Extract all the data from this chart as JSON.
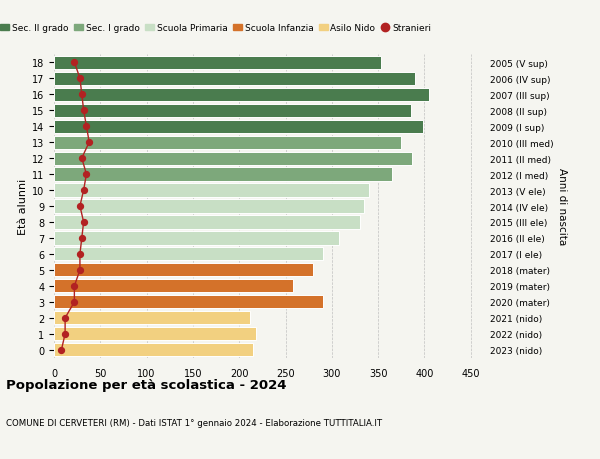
{
  "ages": [
    0,
    1,
    2,
    3,
    4,
    5,
    6,
    7,
    8,
    9,
    10,
    11,
    12,
    13,
    14,
    15,
    16,
    17,
    18
  ],
  "bar_values": [
    215,
    218,
    212,
    290,
    258,
    280,
    290,
    308,
    330,
    335,
    340,
    365,
    387,
    375,
    398,
    385,
    405,
    390,
    353
  ],
  "stranieri": [
    8,
    12,
    12,
    22,
    22,
    28,
    28,
    30,
    32,
    28,
    32,
    35,
    30,
    38,
    35,
    32,
    30,
    28,
    22
  ],
  "right_labels": [
    "2023 (nido)",
    "2022 (nido)",
    "2021 (nido)",
    "2020 (mater)",
    "2019 (mater)",
    "2018 (mater)",
    "2017 (I ele)",
    "2016 (II ele)",
    "2015 (III ele)",
    "2014 (IV ele)",
    "2013 (V ele)",
    "2012 (I med)",
    "2011 (II med)",
    "2010 (III med)",
    "2009 (I sup)",
    "2008 (II sup)",
    "2007 (III sup)",
    "2006 (IV sup)",
    "2005 (V sup)"
  ],
  "colors": {
    "sec2": "#4a7c4e",
    "sec1": "#7da87b",
    "primaria": "#c8dfc5",
    "infanzia": "#d4722a",
    "nido": "#f2d080",
    "stranieri": "#b22222",
    "bg": "#f5f5f0"
  },
  "bar_colors": [
    "#f2d080",
    "#f2d080",
    "#f2d080",
    "#d4722a",
    "#d4722a",
    "#d4722a",
    "#c8dfc5",
    "#c8dfc5",
    "#c8dfc5",
    "#c8dfc5",
    "#c8dfc5",
    "#7da87b",
    "#7da87b",
    "#7da87b",
    "#4a7c4e",
    "#4a7c4e",
    "#4a7c4e",
    "#4a7c4e",
    "#4a7c4e"
  ],
  "legend_labels": [
    "Sec. II grado",
    "Sec. I grado",
    "Scuola Primaria",
    "Scuola Infanzia",
    "Asilo Nido",
    "Stranieri"
  ],
  "legend_colors": [
    "#4a7c4e",
    "#7da87b",
    "#c8dfc5",
    "#d4722a",
    "#f2d080",
    "#b22222"
  ],
  "xlabel_vals": [
    0,
    50,
    100,
    150,
    200,
    250,
    300,
    350,
    400,
    450
  ],
  "xlim": [
    0,
    460
  ],
  "title": "Popolazione per età scolastica - 2024",
  "subtitle": "COMUNE DI CERVETERI (RM) - Dati ISTAT 1° gennaio 2024 - Elaborazione TUTTITALIA.IT",
  "ylabel": "Età alunni",
  "right_ylabel": "Anni di nascita"
}
